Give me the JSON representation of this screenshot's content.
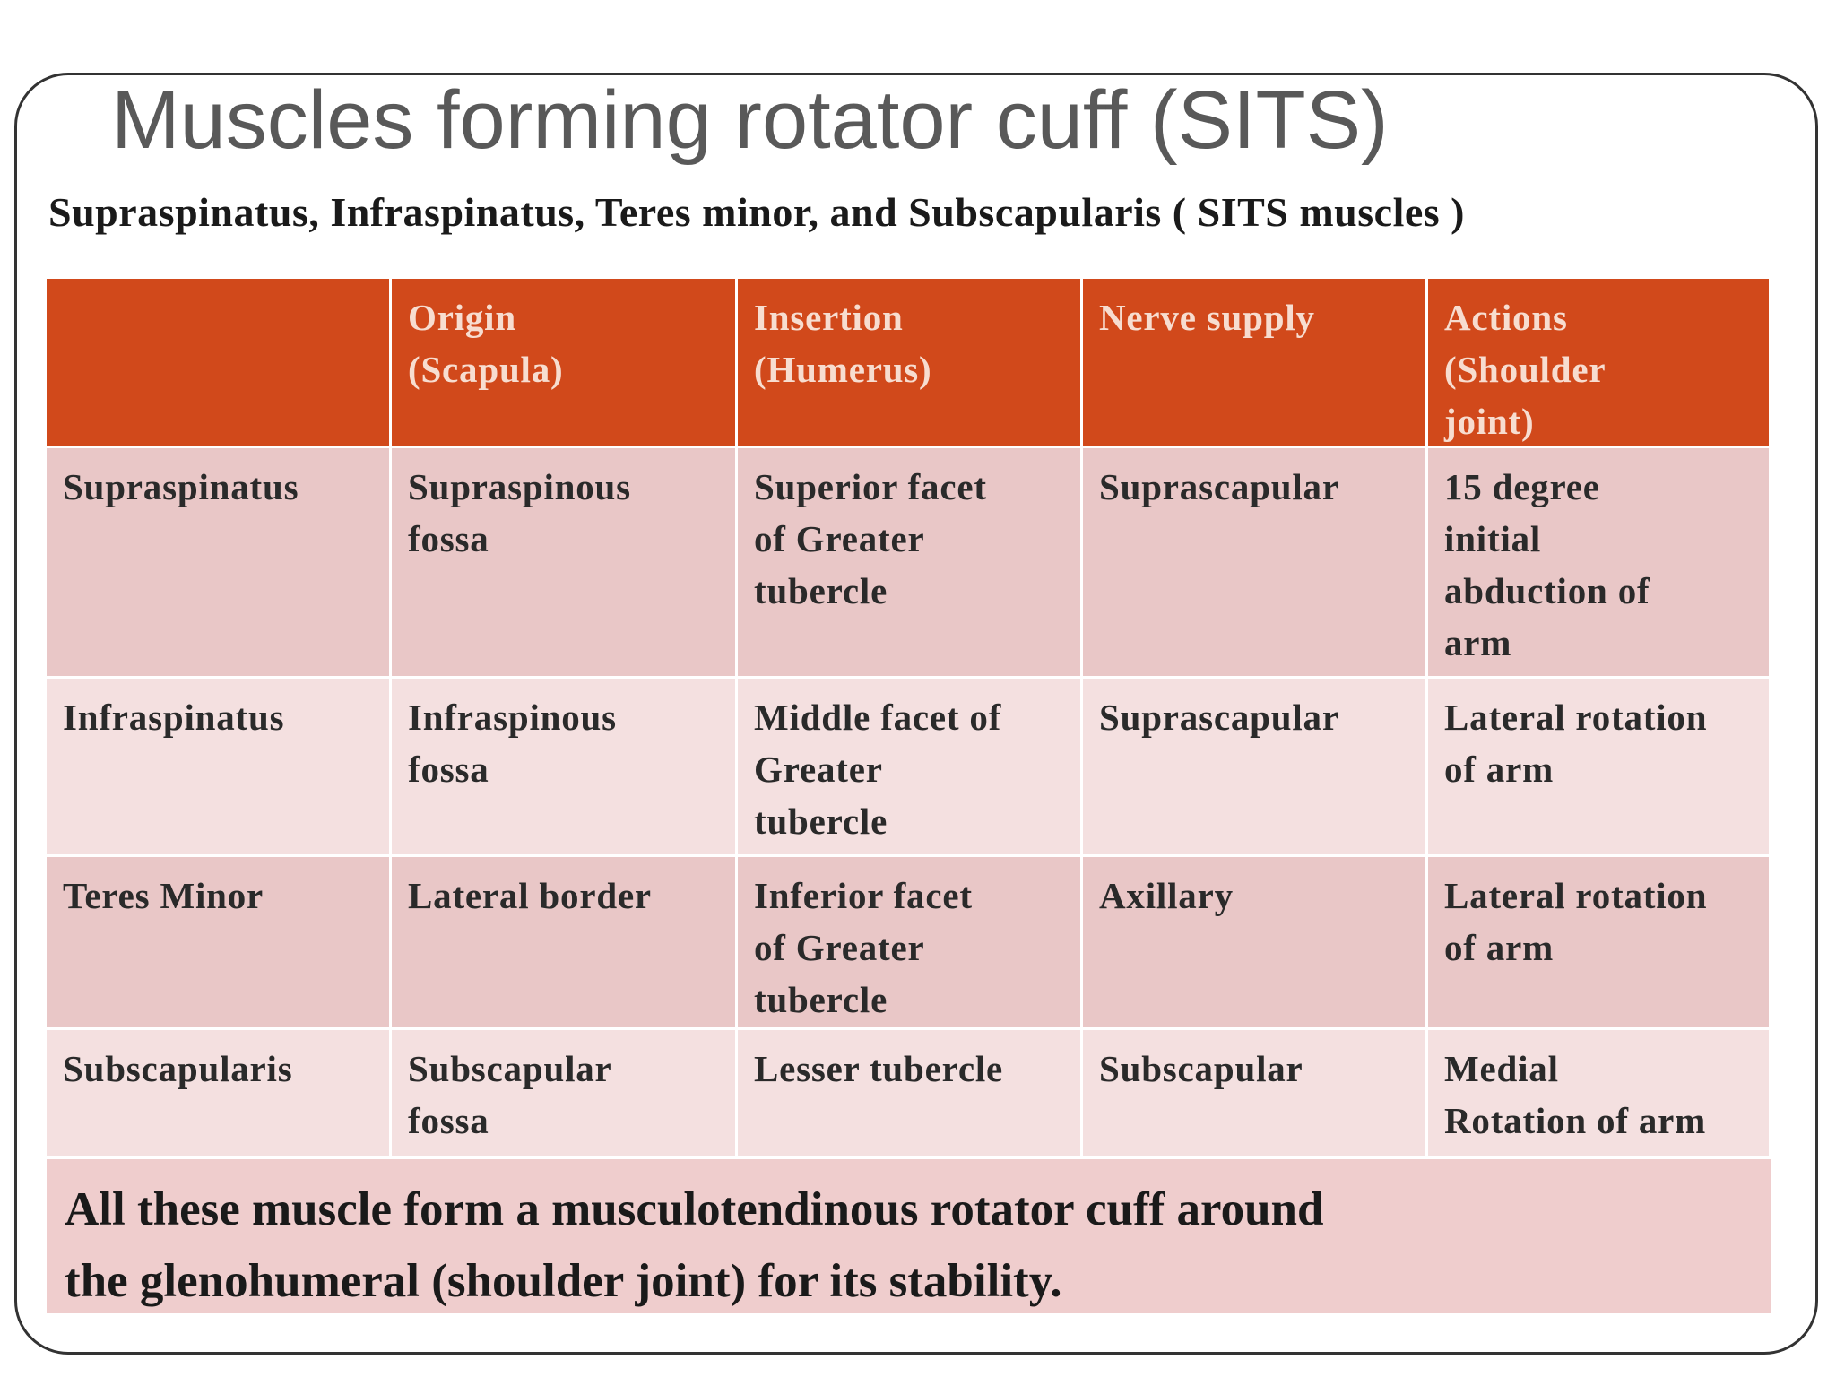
{
  "header": {
    "title": "Muscles forming rotator cuff (SITS)",
    "subtitle": "Supraspinatus,  Infraspinatus, Teres minor, and  Subscapularis ( SITS muscles )"
  },
  "table": {
    "columns": [
      "Origin\n(Scapula)",
      "Insertion\n(Humerus)",
      "Nerve supply",
      "Actions\n(Shoulder\njoint)"
    ],
    "rows": [
      [
        "Supraspinatus",
        "Supraspinous\nfossa",
        "Superior facet\nof Greater\ntubercle",
        "Suprascapular",
        "15 degree\ninitial\nabduction of\narm"
      ],
      [
        "Infraspinatus",
        "Infraspinous\nfossa",
        "Middle facet of\nGreater\ntubercle",
        "Suprascapular",
        "Lateral rotation\nof arm"
      ],
      [
        "Teres Minor",
        "Lateral border",
        "Inferior facet\nof Greater\ntubercle",
        "Axillary",
        "Lateral rotation\nof arm"
      ],
      [
        "Subscapularis",
        "Subscapular\nfossa",
        "Lesser tubercle",
        "Subscapular",
        "Medial\nRotation of arm"
      ]
    ]
  },
  "footer": {
    "note": "All these muscle form a musculotendinous rotator cuff around\nthe glenohumeral (shoulder joint) for its stability."
  }
}
